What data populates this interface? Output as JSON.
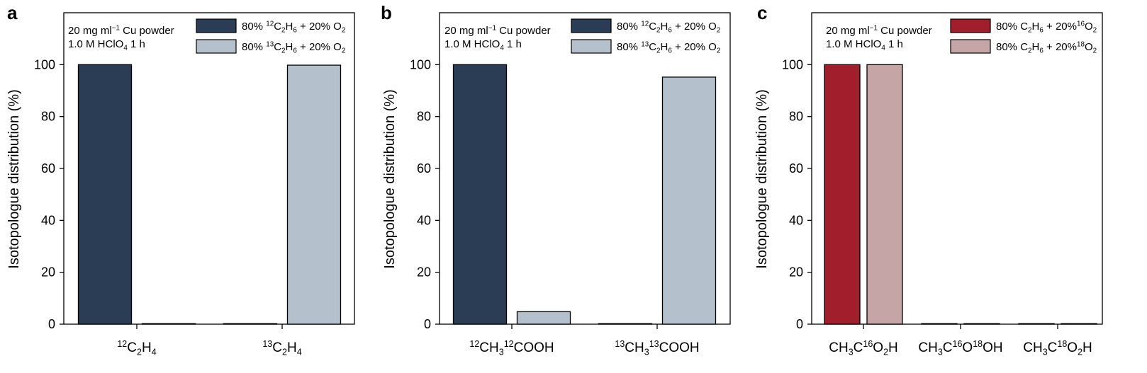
{
  "chart_data": [
    {
      "type": "bar",
      "panel": "a",
      "ylabel": "Isotopologue distribution (%)",
      "ylim": [
        0,
        120
      ],
      "yticks": [
        0,
        20,
        40,
        60,
        80,
        100
      ],
      "annotation": [
        [
          {
            "t": "20 mg ml"
          },
          {
            "t": "−1",
            "s": "sup"
          },
          {
            "t": " Cu powder"
          }
        ],
        [
          {
            "t": "1.0 M HClO"
          },
          {
            "t": "4",
            "s": "sub"
          },
          {
            "t": " 1 h"
          }
        ]
      ],
      "categories": [
        [
          {
            "t": "12",
            "s": "sup"
          },
          {
            "t": "C"
          },
          {
            "t": "2",
            "s": "sub"
          },
          {
            "t": "H"
          },
          {
            "t": "4",
            "s": "sub"
          }
        ],
        [
          {
            "t": "13",
            "s": "sup"
          },
          {
            "t": "C"
          },
          {
            "t": "2",
            "s": "sub"
          },
          {
            "t": "H"
          },
          {
            "t": "4",
            "s": "sub"
          }
        ]
      ],
      "series": [
        {
          "name": [
            {
              "t": "80% "
            },
            {
              "t": "12",
              "s": "sup"
            },
            {
              "t": "C"
            },
            {
              "t": "2",
              "s": "sub"
            },
            {
              "t": "H"
            },
            {
              "t": "6",
              "s": "sub"
            },
            {
              "t": " + 20% O"
            },
            {
              "t": "2",
              "s": "sub"
            }
          ],
          "color": "#2b3d55",
          "values": [
            100,
            0
          ]
        },
        {
          "name": [
            {
              "t": "80% "
            },
            {
              "t": "13",
              "s": "sup"
            },
            {
              "t": "C"
            },
            {
              "t": "2",
              "s": "sub"
            },
            {
              "t": "H"
            },
            {
              "t": "6",
              "s": "sub"
            },
            {
              "t": " + 20% O"
            },
            {
              "t": "2",
              "s": "sub"
            }
          ],
          "color": "#b4c0cb",
          "values": [
            0,
            99.8
          ]
        }
      ]
    },
    {
      "type": "bar",
      "panel": "b",
      "ylabel": "Isotopologue distribution (%)",
      "ylim": [
        0,
        120
      ],
      "yticks": [
        0,
        20,
        40,
        60,
        80,
        100
      ],
      "annotation": [
        [
          {
            "t": "20 mg ml"
          },
          {
            "t": "−1",
            "s": "sup"
          },
          {
            "t": " Cu powder"
          }
        ],
        [
          {
            "t": "1.0 M HClO"
          },
          {
            "t": "4",
            "s": "sub"
          },
          {
            "t": " 1 h"
          }
        ]
      ],
      "categories": [
        [
          {
            "t": "12",
            "s": "sup"
          },
          {
            "t": "CH"
          },
          {
            "t": "3",
            "s": "sub"
          },
          {
            "t": "12",
            "s": "sup"
          },
          {
            "t": "COOH"
          }
        ],
        [
          {
            "t": "13",
            "s": "sup"
          },
          {
            "t": "CH"
          },
          {
            "t": "3",
            "s": "sub"
          },
          {
            "t": "13",
            "s": "sup"
          },
          {
            "t": "COOH"
          }
        ]
      ],
      "series": [
        {
          "name": [
            {
              "t": "80% "
            },
            {
              "t": "12",
              "s": "sup"
            },
            {
              "t": "C"
            },
            {
              "t": "2",
              "s": "sub"
            },
            {
              "t": "H"
            },
            {
              "t": "6",
              "s": "sub"
            },
            {
              "t": " + 20% O"
            },
            {
              "t": "2",
              "s": "sub"
            }
          ],
          "color": "#2b3d55",
          "values": [
            100,
            0
          ]
        },
        {
          "name": [
            {
              "t": "80% "
            },
            {
              "t": "13",
              "s": "sup"
            },
            {
              "t": "C"
            },
            {
              "t": "2",
              "s": "sub"
            },
            {
              "t": "H"
            },
            {
              "t": "6",
              "s": "sub"
            },
            {
              "t": " + 20% O"
            },
            {
              "t": "2",
              "s": "sub"
            }
          ],
          "color": "#b4c0cb",
          "values": [
            4.8,
            95.2
          ]
        }
      ]
    },
    {
      "type": "bar",
      "panel": "c",
      "ylabel": "Isotopologue distribution (%)",
      "ylim": [
        0,
        120
      ],
      "yticks": [
        0,
        20,
        40,
        60,
        80,
        100
      ],
      "annotation": [
        [
          {
            "t": "20 mg ml"
          },
          {
            "t": "−1",
            "s": "sup"
          },
          {
            "t": " Cu powder"
          }
        ],
        [
          {
            "t": "1.0 M HClO"
          },
          {
            "t": "4",
            "s": "sub"
          },
          {
            "t": " 1 h"
          }
        ]
      ],
      "categories": [
        [
          {
            "t": "CH"
          },
          {
            "t": "3",
            "s": "sub"
          },
          {
            "t": "C"
          },
          {
            "t": "16",
            "s": "sup"
          },
          {
            "t": "O"
          },
          {
            "t": "2",
            "s": "sub"
          },
          {
            "t": "H"
          }
        ],
        [
          {
            "t": "CH"
          },
          {
            "t": "3",
            "s": "sub"
          },
          {
            "t": "C"
          },
          {
            "t": "16",
            "s": "sup"
          },
          {
            "t": "O"
          },
          {
            "t": "18",
            "s": "sup"
          },
          {
            "t": "OH"
          }
        ],
        [
          {
            "t": "CH"
          },
          {
            "t": "3",
            "s": "sub"
          },
          {
            "t": "C"
          },
          {
            "t": "18",
            "s": "sup"
          },
          {
            "t": "O"
          },
          {
            "t": "2",
            "s": "sub"
          },
          {
            "t": "H"
          }
        ]
      ],
      "series": [
        {
          "name": [
            {
              "t": "80% C"
            },
            {
              "t": "2",
              "s": "sub"
            },
            {
              "t": "H"
            },
            {
              "t": "6",
              "s": "sub"
            },
            {
              "t": " + 20%"
            },
            {
              "t": "16",
              "s": "sup"
            },
            {
              "t": "O"
            },
            {
              "t": "2",
              "s": "sub"
            }
          ],
          "color": "#a11f2c",
          "values": [
            100,
            0,
            0
          ]
        },
        {
          "name": [
            {
              "t": "80% C"
            },
            {
              "t": "2",
              "s": "sub"
            },
            {
              "t": "H"
            },
            {
              "t": "6",
              "s": "sub"
            },
            {
              "t": " + 20%"
            },
            {
              "t": "18",
              "s": "sup"
            },
            {
              "t": "O"
            },
            {
              "t": "2",
              "s": "sub"
            }
          ],
          "color": "#c6a5a6",
          "values": [
            100,
            0,
            0
          ]
        }
      ]
    }
  ]
}
